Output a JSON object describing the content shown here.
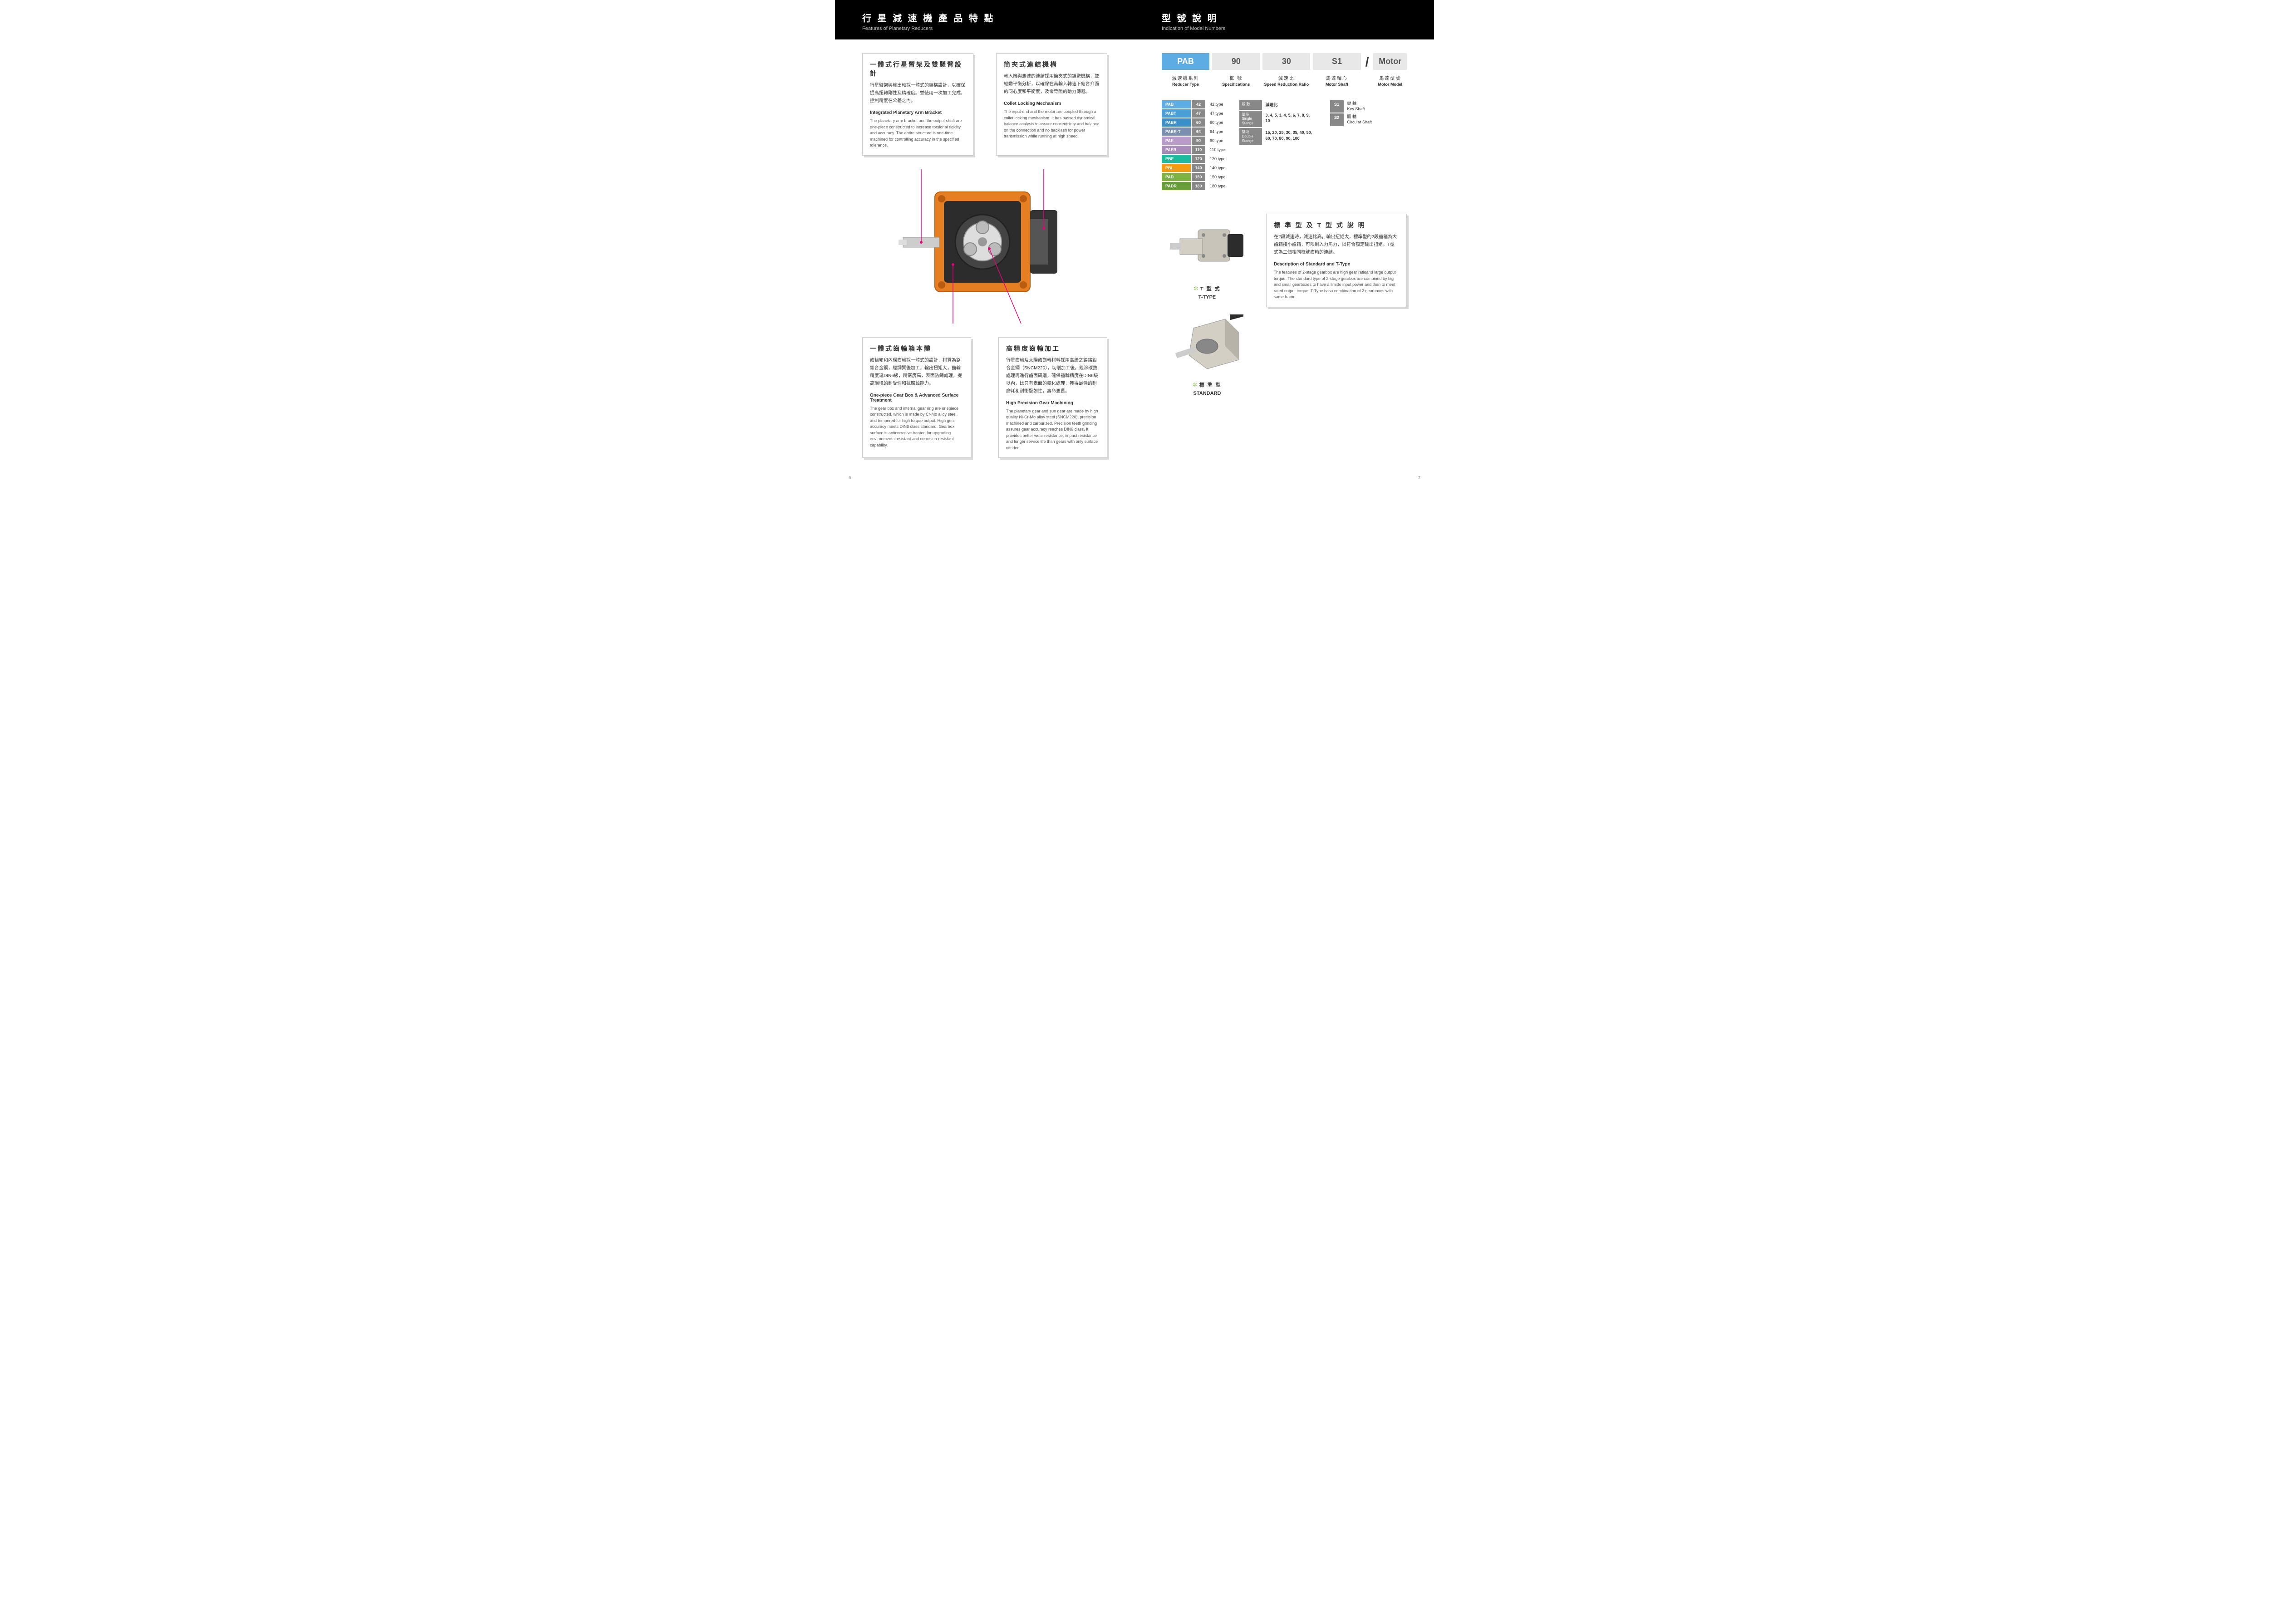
{
  "left": {
    "header_cn": "行 星 減 速 機 產 品 特 點",
    "header_en": "Features of Planetary Reducers",
    "f1": {
      "title_cn": "一體式行星臂架及雙懸臂設計",
      "body_cn": "行星臂架與輸出軸採一體式的結構設計，以確保提高扭轉剛性及精確度。並使用一次加工完成，控制精度在公差之內。",
      "title_en": "Integrated Planetary Arm Bracket",
      "body_en": "The planetary arm bracket and the output shaft are one-piece constructed to increase torsional rigidity and accuracy. The entire structure is one-time machined for controlling accuracy in the specified tolerance."
    },
    "f2": {
      "title_cn": "筒夾式連結機構",
      "body_cn": "輸入端與馬達的連結採用筒夾式的鎖緊機構，並經動平衡分析，以確保在高輸入轉速下結合介面的同心度和平衡度，及零背隙的動力傳遞。",
      "title_en": "Collet  Locking Mechanism",
      "body_en": "The input-end and the motor are coupled  through a collet locking meshanism.  It has passed dynamical balance analysis to assure concentricity and balance on the connection and no backlash for power transmission while running at high speed."
    },
    "f3": {
      "title_cn": "一體式齒輪箱本體",
      "body_cn": "齒輪箱和內環齒輪採一體式的設計，材質為鉻鉬合金鋼，經調質後加工，輸出扭矩大，齒輪精度達DIN6級，精密度高，表面防鏽處理，提高環境的耐受性和抗腐蝕能力。",
      "title_en": "One-piece Gear Box & Advanced Surface Treatment",
      "body_en": "The gear box and internal gear ring are onepiece constructed, which is made by Cr-Mo alloy steel, and tempered for high torque output.  High gear accuracy meets DIN6 class standard. Gearbox surface is anticorrosive treated for upgrading environmentalresistant and corrosion-resistant capability."
    },
    "f4": {
      "title_cn": "高精度齒輪加工",
      "body_cn": "行星齒輪及太陽齒齒輪材料採用高級之鎳鉻鉬合金鋼（SNCM220），切削加工後，經滲碳熱處理再進行齒面研磨，確保齒輪精度在DIN6級以內，比只有表面的氮化處理，獲得最佳的耐磨耗和耐衝擊韌性，壽命更長。",
      "title_en": "High Precision Gear Machining",
      "body_en": "The planetary gear and sun gear are made by high quality Ni-Cr-Mo alloy steel (SNCM220), precision machined and carburized.  Precision teeth grinding assures gear accuracy reaches DIN6 class.  It provides better wear resistance, impact resistance and longer service life than gears with only surface nitrided."
    },
    "pagenum": "6"
  },
  "right": {
    "header_cn": "型 號 說 明",
    "header_en": "Indication of Model Numbers",
    "model": {
      "parts": [
        {
          "code": "PAB",
          "bg": "#5dade2",
          "cn": "減速機系列",
          "en": "Reducer Type"
        },
        {
          "code": "90",
          "bg": "#e8e8e8",
          "cn": "框  號",
          "en": "Specifications"
        },
        {
          "code": "30",
          "bg": "#e8e8e8",
          "cn": "減速比",
          "en": "Speed Reduction Ratio"
        },
        {
          "code": "S1",
          "bg": "#e8e8e8",
          "cn": "馬達軸心",
          "en": "Motor Shaft"
        },
        {
          "code": "Motor",
          "bg": "#e8e8e8",
          "cn": "馬達型號",
          "en": "Motor Model"
        }
      ]
    },
    "series": [
      {
        "tag": "PAB",
        "color": "#5dade2",
        "num": "42",
        "desc": "42 type"
      },
      {
        "tag": "PABT",
        "color": "#4a9fd8",
        "num": "47",
        "desc": "47 type"
      },
      {
        "tag": "PABR",
        "color": "#3a8fc8",
        "num": "60",
        "desc": "60 type"
      },
      {
        "tag": "PABR-T",
        "color": "#7a8fb0",
        "num": "64",
        "desc": "64 type"
      },
      {
        "tag": "PAE",
        "color": "#b89bc9",
        "num": "90",
        "desc": "90 type"
      },
      {
        "tag": "PAER",
        "color": "#a88bb9",
        "num": "110",
        "desc": "110 type"
      },
      {
        "tag": "PBE",
        "color": "#1abc9c",
        "num": "120",
        "desc": "120 type"
      },
      {
        "tag": "PBL",
        "color": "#f39c12",
        "num": "140",
        "desc": "140 type"
      },
      {
        "tag": "PAD",
        "color": "#7cb342",
        "num": "150",
        "desc": "150 type"
      },
      {
        "tag": "PADR",
        "color": "#689f38",
        "num": "180",
        "desc": "180 type"
      }
    ],
    "stages": [
      {
        "lbl_cn": "段  數",
        "lbl_en": "",
        "val": "減速比",
        "header": true
      },
      {
        "lbl_cn": "單段",
        "lbl_en": "Single Stange",
        "val": "3, 4, 5, 3, 4, 5, 6, 7, 8, 9, 10"
      },
      {
        "lbl_cn": "雙段",
        "lbl_en": "Double Stange",
        "val": "15, 20, 25, 30, 35, 40, 50, 60, 70, 80, 90, 100"
      }
    ],
    "shafts": [
      {
        "code": "S1",
        "cn": "鍵 軸",
        "en": "Key Shaft"
      },
      {
        "code": "S2",
        "cn": "圓 軸",
        "en": "Circular Shaft"
      }
    ],
    "ttype": {
      "cn": "T 型 式",
      "en": "T-TYPE"
    },
    "standard": {
      "cn": "標 準 型",
      "en": "STANDARD"
    },
    "desc": {
      "title_cn": "標 準 型 及 T 型 式 說 明",
      "body_cn": "在2段減速時，減速比高，輸出扭矩大，標準型的2段齒箱為大齒箱接小齒箱，可限制入力馬力，以符合額定輸出扭矩。T型式為二個相同框號齒箱的連結。",
      "title_en": "Description of Standard and T-Type",
      "body_en": "The features of 2-stage gearbox are high gear ratioand large output torque.  The standard type of 2-stage gearbox are combined by big and small gearboxes to have a limitto input power and then to meet rated output torque. T-Type hasa combination of 2 gearboxes with same frame."
    },
    "pagenum": "7"
  }
}
